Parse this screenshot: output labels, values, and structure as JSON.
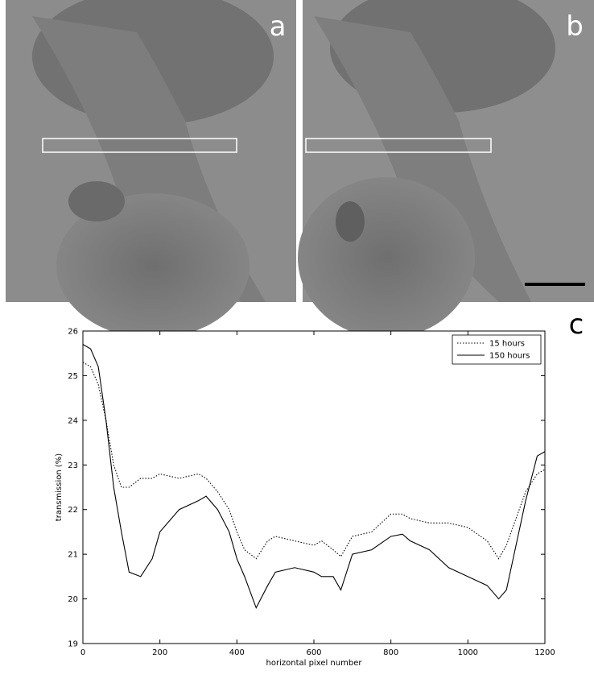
{
  "panel_labels": [
    "a",
    "b",
    "c"
  ],
  "chart_data": {
    "type": "line",
    "xlabel": "horizontal pixel number",
    "ylabel": "transmission (%)",
    "x": [
      0,
      20,
      40,
      60,
      80,
      100,
      120,
      150,
      180,
      200,
      250,
      300,
      320,
      350,
      380,
      400,
      420,
      450,
      480,
      500,
      550,
      600,
      620,
      650,
      670,
      700,
      750,
      800,
      830,
      850,
      900,
      950,
      1000,
      1050,
      1080,
      1100,
      1150,
      1180,
      1200
    ],
    "series": [
      {
        "name": "15 hours",
        "color": "#000000",
        "linestyle": "dotted",
        "values": [
          25.3,
          25.2,
          24.8,
          24.0,
          23.0,
          22.5,
          22.5,
          22.7,
          22.7,
          22.8,
          22.7,
          22.8,
          22.7,
          22.4,
          22.0,
          21.5,
          21.1,
          20.9,
          21.3,
          21.4,
          21.3,
          21.2,
          21.3,
          21.1,
          20.95,
          21.4,
          21.5,
          21.9,
          21.9,
          21.8,
          21.7,
          21.7,
          21.6,
          21.3,
          20.9,
          21.2,
          22.4,
          22.8,
          22.9
        ]
      },
      {
        "name": "150 hours",
        "color": "#000000",
        "linestyle": "solid",
        "values": [
          25.7,
          25.6,
          25.2,
          24.0,
          22.5,
          21.5,
          20.6,
          20.5,
          20.9,
          21.5,
          22.0,
          22.2,
          22.3,
          22.0,
          21.5,
          20.9,
          20.5,
          19.8,
          20.3,
          20.6,
          20.7,
          20.6,
          20.5,
          20.5,
          20.2,
          21.0,
          21.1,
          21.4,
          21.45,
          21.3,
          21.1,
          20.7,
          20.5,
          20.3,
          20.0,
          20.2,
          22.2,
          23.2,
          23.3
        ]
      }
    ],
    "xlim": [
      0,
      1200
    ],
    "xticks": [
      0,
      200,
      400,
      600,
      800,
      1000,
      1200
    ],
    "ylim": [
      19,
      26
    ],
    "yticks": [
      19,
      20,
      21,
      22,
      23,
      24,
      25,
      26
    ],
    "legend": "upper-right"
  }
}
